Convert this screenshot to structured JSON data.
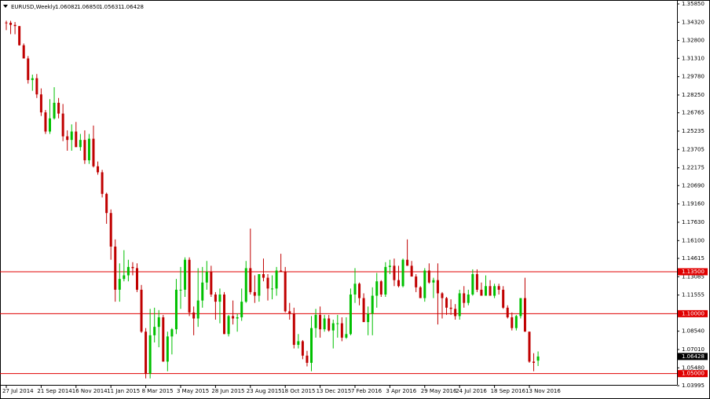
{
  "chart_data": {
    "type": "candlestick",
    "title": "EURUSD,Weekly",
    "quote": [
      "1.06082",
      "1.06850",
      "1.05631",
      "1.06428"
    ],
    "ylim": [
      1.03995,
      1.3585
    ],
    "yticks": [
      {
        "value": 1.3585,
        "label": "1.35850"
      },
      {
        "value": 1.3432,
        "label": "1.34320"
      },
      {
        "value": 1.328,
        "label": "1.32800"
      },
      {
        "value": 1.3131,
        "label": "1.31310"
      },
      {
        "value": 1.2978,
        "label": "1.29780"
      },
      {
        "value": 1.2825,
        "label": "1.28250"
      },
      {
        "value": 1.26765,
        "label": "1.26765"
      },
      {
        "value": 1.25235,
        "label": "1.25235"
      },
      {
        "value": 1.23705,
        "label": "1.23705"
      },
      {
        "value": 1.22175,
        "label": "1.22175"
      },
      {
        "value": 1.2069,
        "label": "1.20690"
      },
      {
        "value": 1.1916,
        "label": "1.19160"
      },
      {
        "value": 1.1763,
        "label": "1.17630"
      },
      {
        "value": 1.161,
        "label": "1.16100"
      },
      {
        "value": 1.14615,
        "label": "1.14615"
      },
      {
        "value": 1.13085,
        "label": "1.13085"
      },
      {
        "value": 1.11555,
        "label": "1.11555"
      },
      {
        "value": 1.0854,
        "label": "1.08540"
      },
      {
        "value": 1.0701,
        "label": "1.07010"
      },
      {
        "value": 1.0548,
        "label": "1.05480"
      },
      {
        "value": 1.03995,
        "label": "1.03995"
      }
    ],
    "levels": [
      {
        "value": 1.135,
        "label": "1.13500"
      },
      {
        "value": 1.1,
        "label": "1.10000"
      },
      {
        "value": 1.05,
        "label": "1.05000"
      }
    ],
    "level_color": "#e00000",
    "last_price": {
      "value": 1.06428,
      "label": "1.06428"
    },
    "up_color": "#00c000",
    "down_color": "#c00000",
    "categories": [
      "27 Jul 2014",
      null,
      null,
      null,
      null,
      null,
      null,
      null,
      "21 Sep 2014",
      null,
      null,
      null,
      null,
      null,
      null,
      null,
      "16 Nov 2014",
      null,
      null,
      null,
      null,
      null,
      null,
      null,
      "11 Jan 2015",
      null,
      null,
      null,
      null,
      null,
      null,
      null,
      "8 Mar 2015",
      null,
      null,
      null,
      null,
      null,
      null,
      null,
      "3 May 2015",
      null,
      null,
      null,
      null,
      null,
      null,
      null,
      "28 Jun 2015",
      null,
      null,
      null,
      null,
      null,
      null,
      null,
      "23 Aug 2015",
      null,
      null,
      null,
      null,
      null,
      null,
      null,
      "18 Oct 2015",
      null,
      null,
      null,
      null,
      null,
      null,
      null,
      "13 Dec 2015",
      null,
      null,
      null,
      null,
      null,
      null,
      null,
      "7 Feb 2016",
      null,
      null,
      null,
      null,
      null,
      null,
      null,
      "3 Apr 2016",
      null,
      null,
      null,
      null,
      null,
      null,
      null,
      "29 May 2016",
      null,
      null,
      null,
      null,
      null,
      null,
      null,
      "24 Jul 2016",
      null,
      null,
      null,
      null,
      null,
      null,
      null,
      "18 Sep 2016",
      null,
      null,
      null,
      null,
      null,
      null,
      null,
      "13 Nov 2016",
      null,
      null
    ],
    "open": [
      1.343,
      1.3428,
      1.341,
      1.34,
      1.324,
      1.313,
      1.295,
      1.2965,
      1.283,
      1.268,
      1.252,
      1.263,
      1.276,
      1.267,
      1.248,
      1.245,
      1.252,
      1.239,
      1.245,
      1.228,
      1.246,
      1.223,
      1.218,
      1.2,
      1.184,
      1.156,
      1.12,
      1.129,
      1.132,
      1.139,
      1.138,
      1.12,
      1.085,
      1.05,
      1.082,
      1.089,
      1.097,
      1.06,
      1.081,
      1.087,
      1.12,
      1.12,
      1.145,
      1.101,
      1.096,
      1.111,
      1.126,
      1.135,
      1.116,
      1.11,
      1.116,
      1.083,
      1.098,
      1.096,
      1.097,
      1.11,
      1.138,
      1.118,
      1.115,
      1.133,
      1.13,
      1.121,
      1.121,
      1.136,
      1.135,
      1.102,
      1.1,
      1.074,
      1.077,
      1.065,
      1.059,
      1.088,
      1.099,
      1.087,
      1.096,
      1.086,
      1.092,
      1.092,
      1.08,
      1.083,
      1.116,
      1.125,
      1.113,
      1.093,
      1.1,
      1.115,
      1.127,
      1.116,
      1.139,
      1.14,
      1.128,
      1.123,
      1.145,
      1.14,
      1.131,
      1.122,
      1.113,
      1.136,
      1.126,
      1.128,
      1.117,
      1.113,
      1.105,
      1.104,
      1.098,
      1.117,
      1.109,
      1.116,
      1.133,
      1.12,
      1.115,
      1.123,
      1.115,
      1.123,
      1.12,
      1.105,
      1.097,
      1.088,
      1.098,
      1.113,
      1.085,
      1.06,
      1.06082
    ],
    "high": [
      1.3445,
      1.3444,
      1.3434,
      1.34,
      1.3255,
      1.315,
      1.2995,
      1.3,
      1.288,
      1.27,
      1.279,
      1.289,
      1.28,
      1.275,
      1.253,
      1.258,
      1.26,
      1.25,
      1.253,
      1.25,
      1.257,
      1.227,
      1.22,
      1.201,
      1.187,
      1.162,
      1.142,
      1.153,
      1.145,
      1.143,
      1.142,
      1.124,
      1.088,
      1.104,
      1.105,
      1.103,
      1.099,
      1.085,
      1.088,
      1.129,
      1.139,
      1.147,
      1.147,
      1.106,
      1.138,
      1.139,
      1.144,
      1.14,
      1.118,
      1.121,
      1.118,
      1.099,
      1.111,
      1.1,
      1.121,
      1.144,
      1.171,
      1.132,
      1.133,
      1.146,
      1.133,
      1.132,
      1.139,
      1.15,
      1.139,
      1.109,
      1.105,
      1.083,
      1.078,
      1.069,
      1.098,
      1.104,
      1.106,
      1.099,
      1.099,
      1.095,
      1.099,
      1.097,
      1.097,
      1.121,
      1.138,
      1.126,
      1.117,
      1.106,
      1.122,
      1.134,
      1.128,
      1.143,
      1.145,
      1.146,
      1.14,
      1.146,
      1.162,
      1.144,
      1.133,
      1.123,
      1.138,
      1.142,
      1.13,
      1.142,
      1.118,
      1.114,
      1.112,
      1.108,
      1.12,
      1.123,
      1.12,
      1.137,
      1.137,
      1.126,
      1.132,
      1.128,
      1.125,
      1.125,
      1.123,
      1.107,
      1.101,
      1.099,
      1.113,
      1.13,
      1.085,
      1.067,
      1.0685
    ],
    "low": [
      1.3366,
      1.3333,
      1.3332,
      1.3237,
      1.313,
      1.292,
      1.286,
      1.28,
      1.265,
      1.25,
      1.25,
      1.262,
      1.263,
      1.244,
      1.236,
      1.236,
      1.239,
      1.236,
      1.225,
      1.225,
      1.222,
      1.216,
      1.197,
      1.175,
      1.145,
      1.11,
      1.11,
      1.127,
      1.127,
      1.132,
      1.118,
      1.084,
      1.046,
      1.046,
      1.076,
      1.072,
      1.06,
      1.052,
      1.066,
      1.083,
      1.104,
      1.114,
      1.098,
      1.082,
      1.089,
      1.105,
      1.12,
      1.114,
      1.095,
      1.092,
      1.083,
      1.081,
      1.091,
      1.085,
      1.094,
      1.109,
      1.116,
      1.109,
      1.11,
      1.127,
      1.111,
      1.112,
      1.115,
      1.135,
      1.101,
      1.095,
      1.071,
      1.071,
      1.062,
      1.056,
      1.052,
      1.08,
      1.08,
      1.085,
      1.085,
      1.071,
      1.08,
      1.077,
      1.079,
      1.082,
      1.109,
      1.107,
      1.093,
      1.082,
      1.082,
      1.105,
      1.114,
      1.114,
      1.133,
      1.123,
      1.122,
      1.122,
      1.14,
      1.131,
      1.118,
      1.113,
      1.11,
      1.125,
      1.113,
      1.091,
      1.096,
      1.099,
      1.099,
      1.095,
      1.095,
      1.105,
      1.107,
      1.115,
      1.118,
      1.115,
      1.115,
      1.115,
      1.113,
      1.116,
      1.104,
      1.096,
      1.086,
      1.086,
      1.096,
      1.085,
      1.059,
      1.052,
      1.05631
    ],
    "close": [
      1.3428,
      1.341,
      1.34,
      1.324,
      1.313,
      1.295,
      1.2965,
      1.283,
      1.268,
      1.252,
      1.263,
      1.276,
      1.267,
      1.248,
      1.245,
      1.252,
      1.239,
      1.245,
      1.228,
      1.246,
      1.223,
      1.218,
      1.2,
      1.184,
      1.156,
      1.12,
      1.129,
      1.132,
      1.139,
      1.138,
      1.12,
      1.085,
      1.05,
      1.082,
      1.089,
      1.097,
      1.06,
      1.081,
      1.087,
      1.12,
      1.12,
      1.145,
      1.101,
      1.096,
      1.111,
      1.126,
      1.135,
      1.116,
      1.11,
      1.116,
      1.083,
      1.098,
      1.096,
      1.097,
      1.11,
      1.138,
      1.118,
      1.115,
      1.133,
      1.13,
      1.121,
      1.121,
      1.136,
      1.135,
      1.102,
      1.1,
      1.074,
      1.077,
      1.065,
      1.059,
      1.088,
      1.099,
      1.087,
      1.096,
      1.086,
      1.092,
      1.092,
      1.08,
      1.083,
      1.116,
      1.125,
      1.113,
      1.093,
      1.1,
      1.115,
      1.127,
      1.116,
      1.139,
      1.14,
      1.128,
      1.123,
      1.145,
      1.14,
      1.131,
      1.122,
      1.113,
      1.136,
      1.126,
      1.128,
      1.117,
      1.113,
      1.105,
      1.104,
      1.098,
      1.117,
      1.109,
      1.116,
      1.133,
      1.12,
      1.115,
      1.123,
      1.115,
      1.123,
      1.12,
      1.105,
      1.097,
      1.088,
      1.098,
      1.113,
      1.085,
      1.06,
      1.059,
      1.06428
    ]
  }
}
